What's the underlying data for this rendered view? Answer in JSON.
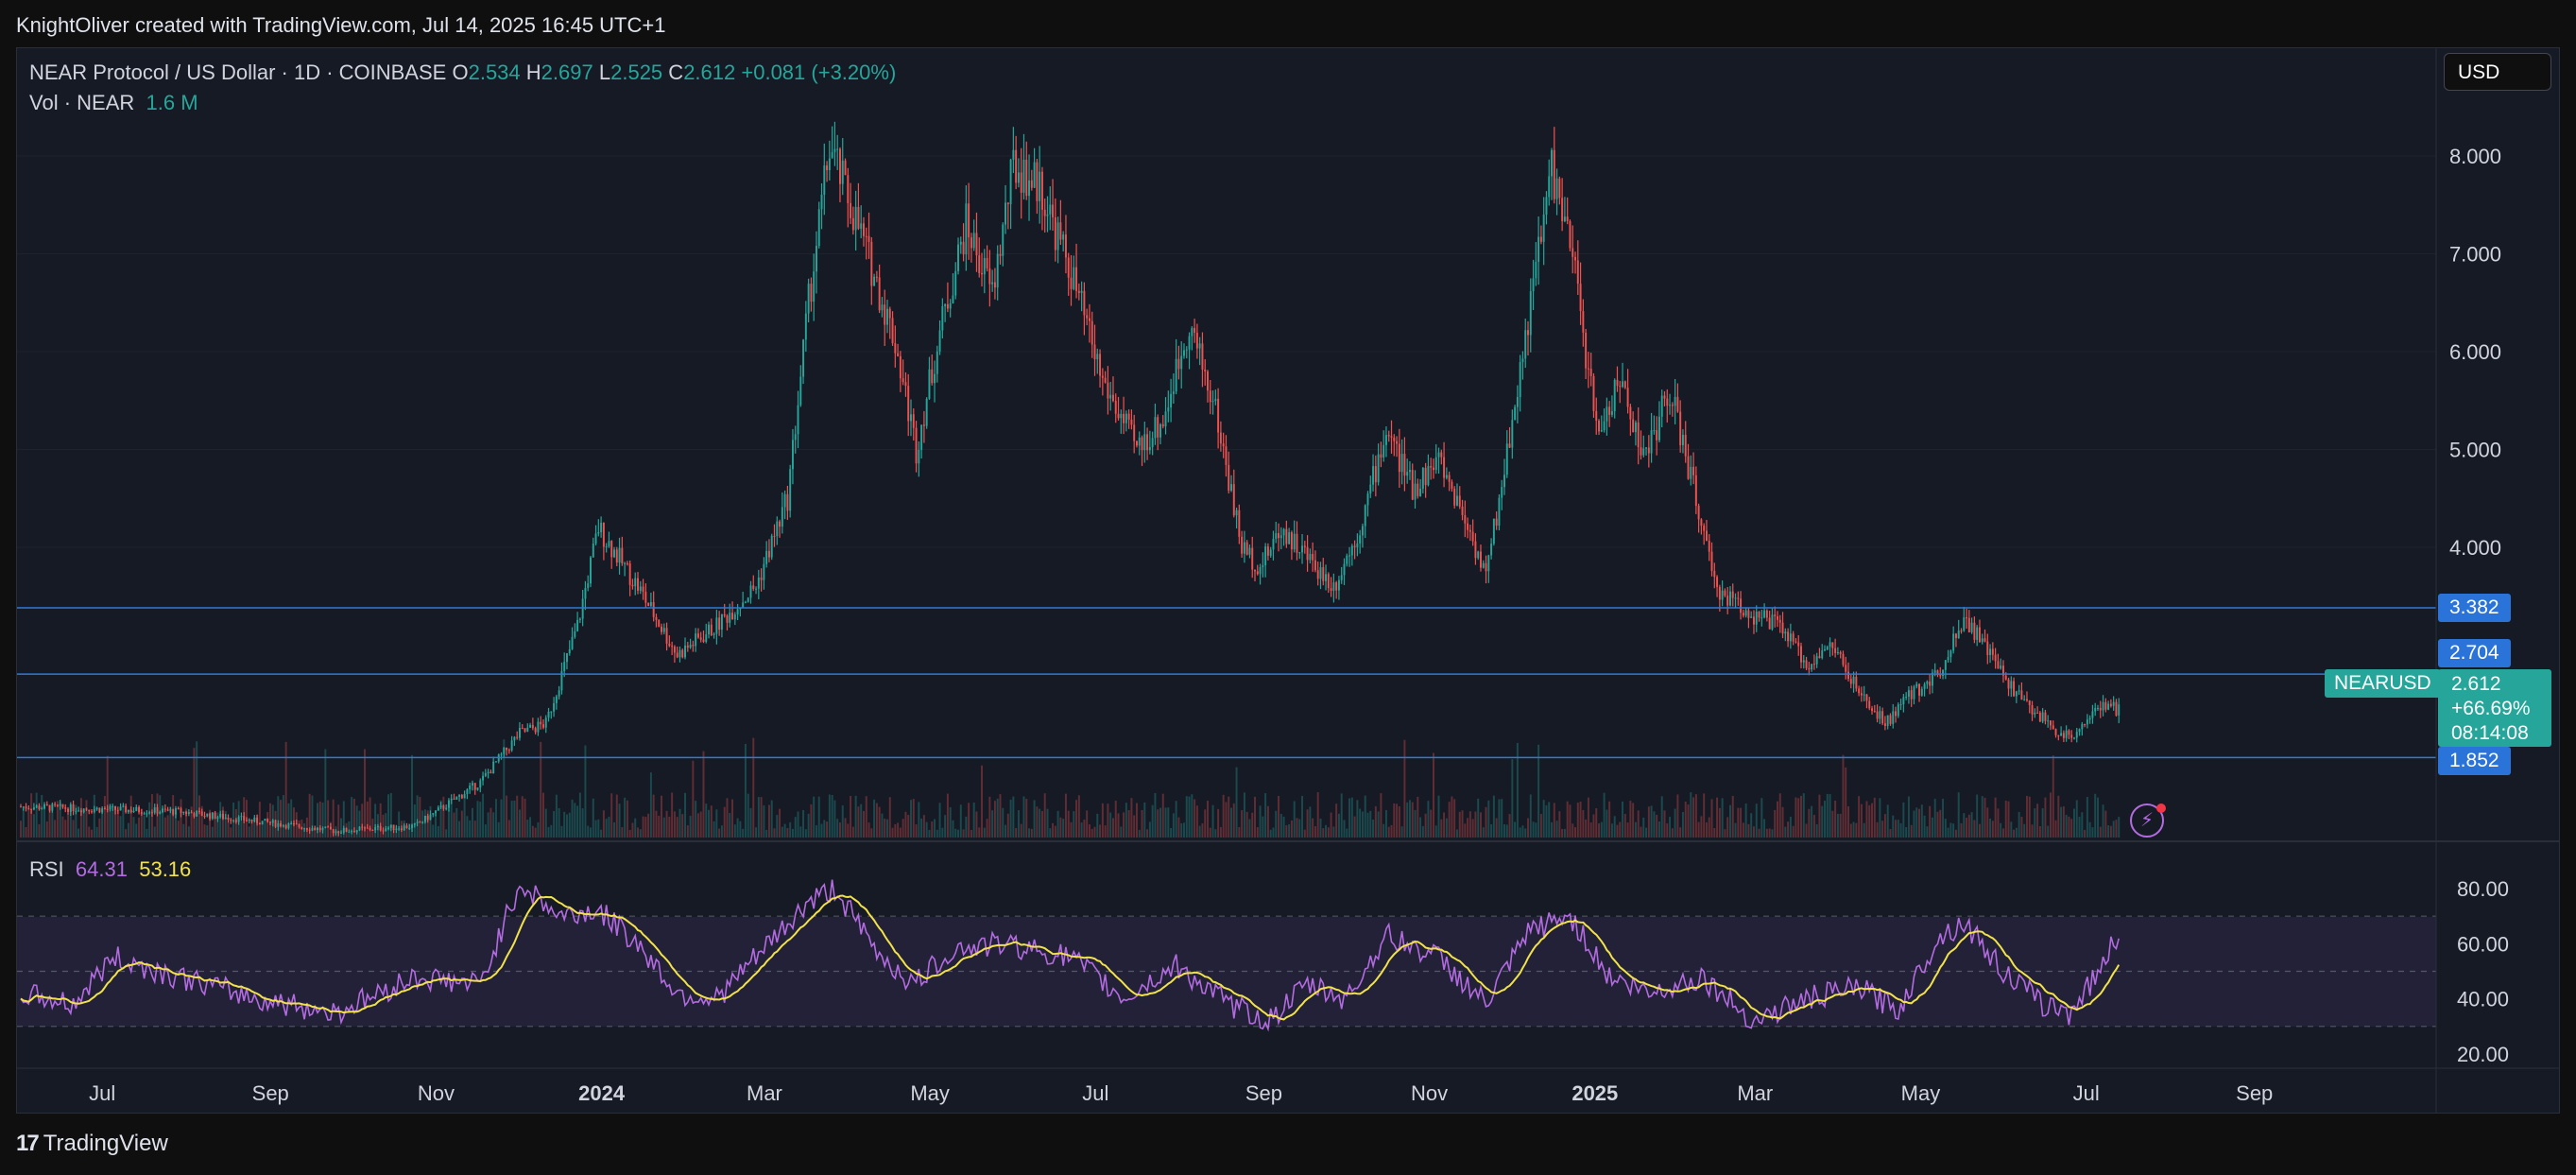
{
  "header": {
    "created_by": "KnightOliver created with TradingView.com, Jul 14, 2025 16:45 UTC+1"
  },
  "legend": {
    "symbol": "NEAR Protocol / US Dollar · 1D · COINBASE",
    "o_label": "O",
    "o_value": "2.534",
    "h_label": "H",
    "h_value": "2.697",
    "l_label": "L",
    "l_value": "2.525",
    "c_label": "C",
    "c_value": "2.612",
    "change": "+0.081 (+3.20%)",
    "vol_label": "Vol · NEAR",
    "vol_value": "1.6 M"
  },
  "rsi_legend": {
    "label": "RSI",
    "rsi_value": "64.31",
    "ma_value": "53.16"
  },
  "currency_button": "USD",
  "symbol_tag": "NEARUSD",
  "last_price": {
    "price": "2.612",
    "change": "+66.69%",
    "countdown": "08:14:08"
  },
  "hlines": [
    {
      "label": "3.382",
      "value": 3.382
    },
    {
      "label": "2.704",
      "value": 2.704
    },
    {
      "label": "1.852",
      "value": 1.852
    }
  ],
  "colors": {
    "up": "#26a69a",
    "down": "#ef5350",
    "rsi": "#b36be0",
    "rsi_ma": "#f2e24a",
    "hline": "#2f7ad6",
    "pill": "#2a73d9"
  },
  "footer": {
    "brand": "TradingView",
    "icon": "tradingview-logo-icon"
  },
  "chart_data": {
    "type": "candlestick",
    "price_axis": {
      "ticks": [
        {
          "v": 8,
          "label": "8.000"
        },
        {
          "v": 7,
          "label": "7.000"
        },
        {
          "v": 6,
          "label": "6.000"
        },
        {
          "v": 5,
          "label": "5.000"
        },
        {
          "v": 4,
          "label": "4.000"
        }
      ],
      "ylim": [
        1.7,
        9.2
      ]
    },
    "rsi_axis": {
      "ticks": [
        {
          "v": 80,
          "label": "80.00"
        },
        {
          "v": 60,
          "label": "60.00"
        },
        {
          "v": 40,
          "label": "40.00"
        },
        {
          "v": 20,
          "label": "20.00"
        }
      ],
      "band": [
        30,
        70
      ],
      "mid": 50,
      "ylim": [
        15,
        85
      ]
    },
    "time_axis": [
      "Jul",
      "Sep",
      "Nov",
      "2024",
      "Mar",
      "May",
      "Jul",
      "Sep",
      "Nov",
      "2025",
      "Mar",
      "May",
      "Jul",
      "Sep"
    ],
    "time_axis_bold": [
      "2024",
      "2025"
    ],
    "period_start": "2023-06-01",
    "period_end": "2025-07-14",
    "close_anchors": [
      {
        "t": 0,
        "p": 1.35
      },
      {
        "t": 60,
        "p": 1.3
      },
      {
        "t": 120,
        "p": 1.1
      },
      {
        "t": 150,
        "p": 1.15
      },
      {
        "t": 175,
        "p": 1.6
      },
      {
        "t": 190,
        "p": 2.1
      },
      {
        "t": 200,
        "p": 2.2
      },
      {
        "t": 212,
        "p": 3.2
      },
      {
        "t": 220,
        "p": 4.2
      },
      {
        "t": 235,
        "p": 3.6
      },
      {
        "t": 250,
        "p": 2.9
      },
      {
        "t": 265,
        "p": 3.2
      },
      {
        "t": 280,
        "p": 3.6
      },
      {
        "t": 292,
        "p": 4.5
      },
      {
        "t": 300,
        "p": 6.5
      },
      {
        "t": 308,
        "p": 8.1
      },
      {
        "t": 320,
        "p": 7.2
      },
      {
        "t": 333,
        "p": 6.1
      },
      {
        "t": 341,
        "p": 5.0
      },
      {
        "t": 350,
        "p": 6.2
      },
      {
        "t": 360,
        "p": 7.3
      },
      {
        "t": 370,
        "p": 6.6
      },
      {
        "t": 378,
        "p": 7.9
      },
      {
        "t": 388,
        "p": 7.7
      },
      {
        "t": 400,
        "p": 6.8
      },
      {
        "t": 412,
        "p": 5.7
      },
      {
        "t": 425,
        "p": 5.0
      },
      {
        "t": 435,
        "p": 5.3
      },
      {
        "t": 445,
        "p": 6.3
      },
      {
        "t": 455,
        "p": 5.4
      },
      {
        "t": 465,
        "p": 4.0
      },
      {
        "t": 472,
        "p": 3.8
      },
      {
        "t": 480,
        "p": 4.2
      },
      {
        "t": 490,
        "p": 3.9
      },
      {
        "t": 500,
        "p": 3.6
      },
      {
        "t": 510,
        "p": 4.2
      },
      {
        "t": 520,
        "p": 5.2
      },
      {
        "t": 530,
        "p": 4.6
      },
      {
        "t": 540,
        "p": 4.9
      },
      {
        "t": 550,
        "p": 4.3
      },
      {
        "t": 558,
        "p": 3.7
      },
      {
        "t": 565,
        "p": 4.8
      },
      {
        "t": 575,
        "p": 6.5
      },
      {
        "t": 583,
        "p": 7.9
      },
      {
        "t": 592,
        "p": 6.8
      },
      {
        "t": 600,
        "p": 5.2
      },
      {
        "t": 610,
        "p": 5.7
      },
      {
        "t": 618,
        "p": 4.9
      },
      {
        "t": 628,
        "p": 5.6
      },
      {
        "t": 638,
        "p": 4.5
      },
      {
        "t": 645,
        "p": 3.6
      },
      {
        "t": 660,
        "p": 3.3
      },
      {
        "t": 670,
        "p": 3.2
      },
      {
        "t": 680,
        "p": 2.8
      },
      {
        "t": 690,
        "p": 3.0
      },
      {
        "t": 700,
        "p": 2.5
      },
      {
        "t": 710,
        "p": 2.2
      },
      {
        "t": 720,
        "p": 2.5
      },
      {
        "t": 730,
        "p": 2.7
      },
      {
        "t": 740,
        "p": 3.3
      },
      {
        "t": 750,
        "p": 2.9
      },
      {
        "t": 760,
        "p": 2.5
      },
      {
        "t": 770,
        "p": 2.25
      },
      {
        "t": 780,
        "p": 2.05
      },
      {
        "t": 790,
        "p": 2.35
      },
      {
        "t": 774,
        "p": 2.15
      }
    ],
    "rsi_anchors": [
      {
        "t": 0,
        "r": 42
      },
      {
        "t": 20,
        "r": 38
      },
      {
        "t": 35,
        "r": 55
      },
      {
        "t": 60,
        "r": 48
      },
      {
        "t": 90,
        "r": 40
      },
      {
        "t": 120,
        "r": 35
      },
      {
        "t": 150,
        "r": 48
      },
      {
        "t": 175,
        "r": 45
      },
      {
        "t": 190,
        "r": 82
      },
      {
        "t": 205,
        "r": 70
      },
      {
        "t": 220,
        "r": 72
      },
      {
        "t": 235,
        "r": 60
      },
      {
        "t": 250,
        "r": 42
      },
      {
        "t": 265,
        "r": 40
      },
      {
        "t": 280,
        "r": 55
      },
      {
        "t": 300,
        "r": 75
      },
      {
        "t": 310,
        "r": 80
      },
      {
        "t": 325,
        "r": 58
      },
      {
        "t": 340,
        "r": 45
      },
      {
        "t": 355,
        "r": 58
      },
      {
        "t": 375,
        "r": 60
      },
      {
        "t": 400,
        "r": 55
      },
      {
        "t": 420,
        "r": 40
      },
      {
        "t": 440,
        "r": 52
      },
      {
        "t": 460,
        "r": 38
      },
      {
        "t": 475,
        "r": 32
      },
      {
        "t": 490,
        "r": 45
      },
      {
        "t": 505,
        "r": 40
      },
      {
        "t": 520,
        "r": 63
      },
      {
        "t": 540,
        "r": 55
      },
      {
        "t": 558,
        "r": 38
      },
      {
        "t": 575,
        "r": 65
      },
      {
        "t": 590,
        "r": 70
      },
      {
        "t": 605,
        "r": 48
      },
      {
        "t": 620,
        "r": 42
      },
      {
        "t": 640,
        "r": 48
      },
      {
        "t": 660,
        "r": 32
      },
      {
        "t": 680,
        "r": 40
      },
      {
        "t": 700,
        "r": 44
      },
      {
        "t": 715,
        "r": 36
      },
      {
        "t": 730,
        "r": 62
      },
      {
        "t": 740,
        "r": 68
      },
      {
        "t": 755,
        "r": 50
      },
      {
        "t": 770,
        "r": 38
      },
      {
        "t": 780,
        "r": 35
      },
      {
        "t": 790,
        "r": 48
      },
      {
        "t": 799,
        "r": 64
      }
    ]
  }
}
